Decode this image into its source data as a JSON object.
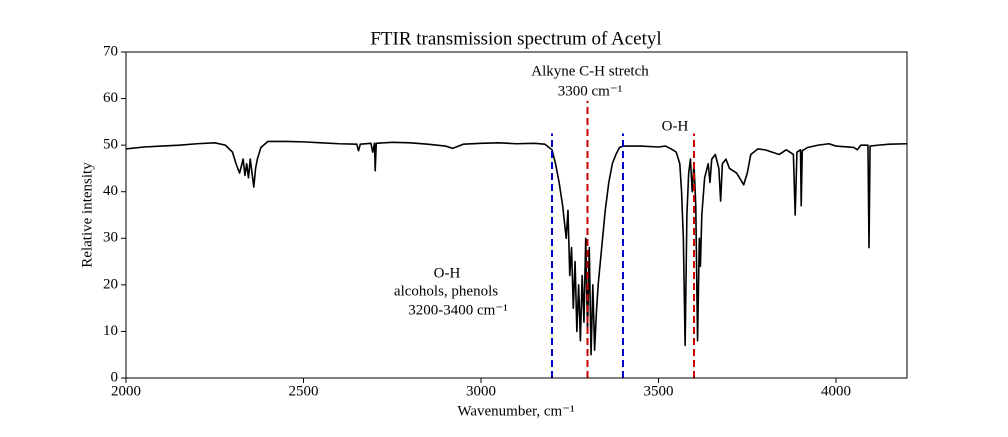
{
  "chart_data": {
    "type": "line",
    "title": "FTIR transmission spectrum of Acetyl",
    "x_label": "Wavenumber, cm⁻¹",
    "y_label": "Relative intensity",
    "xlim": [
      2000,
      4200
    ],
    "ylim": [
      0,
      70
    ],
    "xticks": [
      2000,
      2500,
      3000,
      3500,
      4000
    ],
    "yticks": [
      0,
      10,
      20,
      30,
      40,
      50,
      60,
      70
    ],
    "grid": false,
    "x": [
      2000,
      2050,
      2100,
      2150,
      2200,
      2250,
      2280,
      2300,
      2310,
      2320,
      2330,
      2335,
      2340,
      2345,
      2350,
      2355,
      2360,
      2365,
      2370,
      2380,
      2400,
      2450,
      2500,
      2550,
      2600,
      2650,
      2655,
      2660,
      2690,
      2695,
      2700,
      2702,
      2705,
      2750,
      2800,
      2850,
      2900,
      2920,
      2950,
      3000,
      3050,
      3100,
      3150,
      3180,
      3200,
      3210,
      3220,
      3230,
      3240,
      3245,
      3250,
      3255,
      3260,
      3265,
      3270,
      3275,
      3280,
      3285,
      3290,
      3295,
      3300,
      3305,
      3310,
      3315,
      3320,
      3325,
      3330,
      3340,
      3350,
      3360,
      3370,
      3380,
      3390,
      3400,
      3450,
      3500,
      3520,
      3540,
      3550,
      3560,
      3565,
      3570,
      3575,
      3580,
      3585,
      3590,
      3595,
      3600,
      3605,
      3610,
      3615,
      3618,
      3622,
      3630,
      3640,
      3645,
      3650,
      3660,
      3670,
      3675,
      3680,
      3690,
      3700,
      3720,
      3740,
      3750,
      3760,
      3780,
      3800,
      3820,
      3840,
      3860,
      3880,
      3885,
      3890,
      3900,
      3902,
      3905,
      3920,
      3950,
      3980,
      4000,
      4050,
      4060,
      4070,
      4090,
      4093,
      4096,
      4120,
      4150,
      4200
    ],
    "series": [
      {
        "color": "#000000",
        "values": [
          49.2,
          49.6,
          49.8,
          50.0,
          50.3,
          50.5,
          50.0,
          48.5,
          46,
          44,
          47,
          43.5,
          46,
          43,
          47,
          44,
          41,
          45,
          47,
          49.5,
          50.8,
          50.8,
          50.7,
          50.5,
          50.3,
          50.2,
          48.8,
          50.2,
          50.4,
          48.5,
          50.4,
          44.5,
          50.4,
          50.6,
          50.5,
          50.2,
          49.8,
          49.3,
          50.2,
          50.4,
          50.5,
          50.3,
          50.4,
          50.2,
          49.0,
          46,
          42,
          37,
          30,
          36,
          22,
          28,
          15,
          25,
          10,
          20,
          8,
          22,
          12,
          30,
          10,
          28,
          5,
          20,
          6,
          14,
          20,
          28,
          36,
          42,
          46,
          48,
          49.5,
          49.8,
          49.8,
          49.6,
          49.8,
          49.0,
          48.5,
          46,
          40,
          30,
          7,
          35,
          44,
          47,
          40,
          46,
          37,
          8,
          30,
          24,
          35,
          43,
          46,
          42,
          47,
          48,
          45,
          38,
          46,
          47,
          45,
          44,
          41.5,
          44,
          48,
          49.2,
          49,
          48.5,
          48,
          49,
          48,
          35,
          48.5,
          49,
          37,
          48.8,
          49.5,
          50,
          50.3,
          49.8,
          49.5,
          49,
          50,
          50,
          28,
          49.8,
          50,
          50.2,
          50.3
        ]
      }
    ],
    "vlines": [
      {
        "x": 3200,
        "ymax": 52.5,
        "color": "#0000cc"
      },
      {
        "x": 3400,
        "ymax": 52.5,
        "color": "#0000cc"
      },
      {
        "x": 3300,
        "ymax": 59.5,
        "color": "#cc0000"
      },
      {
        "x": 3600,
        "ymax": 52.5,
        "color": "#cc0000"
      }
    ],
    "annotations": [
      "Alkyne C-H stretch",
      "3300 cm⁻¹",
      "O-H",
      "O-H",
      "alcohols, phenols",
      "3200-3400 cm⁻¹"
    ]
  }
}
